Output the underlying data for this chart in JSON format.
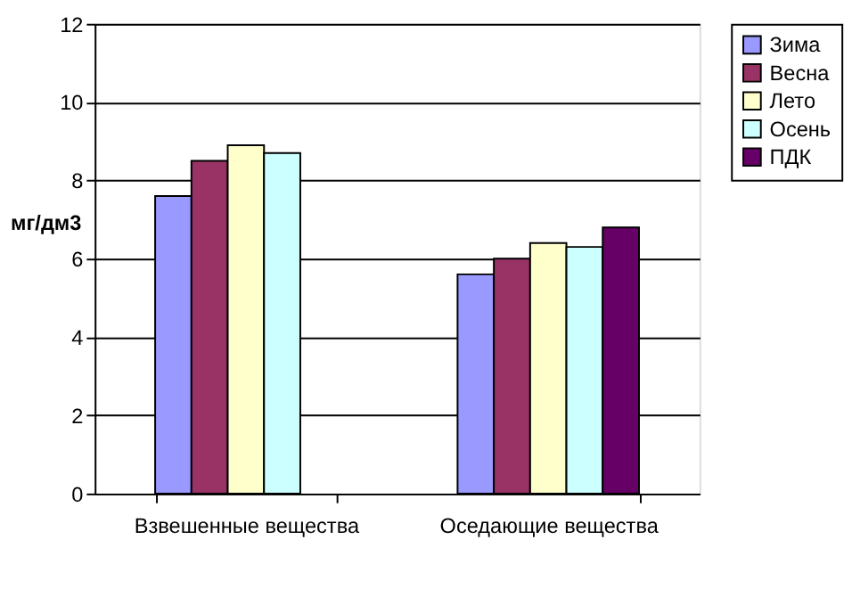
{
  "chart_data": {
    "type": "bar",
    "ylabel": "мг/дм3",
    "categories": [
      "Взвешенные вещества",
      "Оседающие вещества"
    ],
    "series": [
      {
        "name": "Зима",
        "color": "#9999ff",
        "values": [
          7.6,
          5.6
        ]
      },
      {
        "name": "Весна",
        "color": "#993366",
        "values": [
          8.5,
          6.0
        ]
      },
      {
        "name": "Лето",
        "color": "#ffffcc",
        "values": [
          8.9,
          6.4
        ]
      },
      {
        "name": "Осень",
        "color": "#ccffff",
        "values": [
          8.7,
          6.3
        ]
      },
      {
        "name": "ПДК",
        "color": "#660066",
        "values": [
          null,
          6.8
        ]
      }
    ],
    "ylim": [
      0,
      12
    ],
    "yticks": [
      0,
      2,
      4,
      6,
      8,
      10,
      12
    ],
    "grid": "y",
    "legend": "right"
  }
}
